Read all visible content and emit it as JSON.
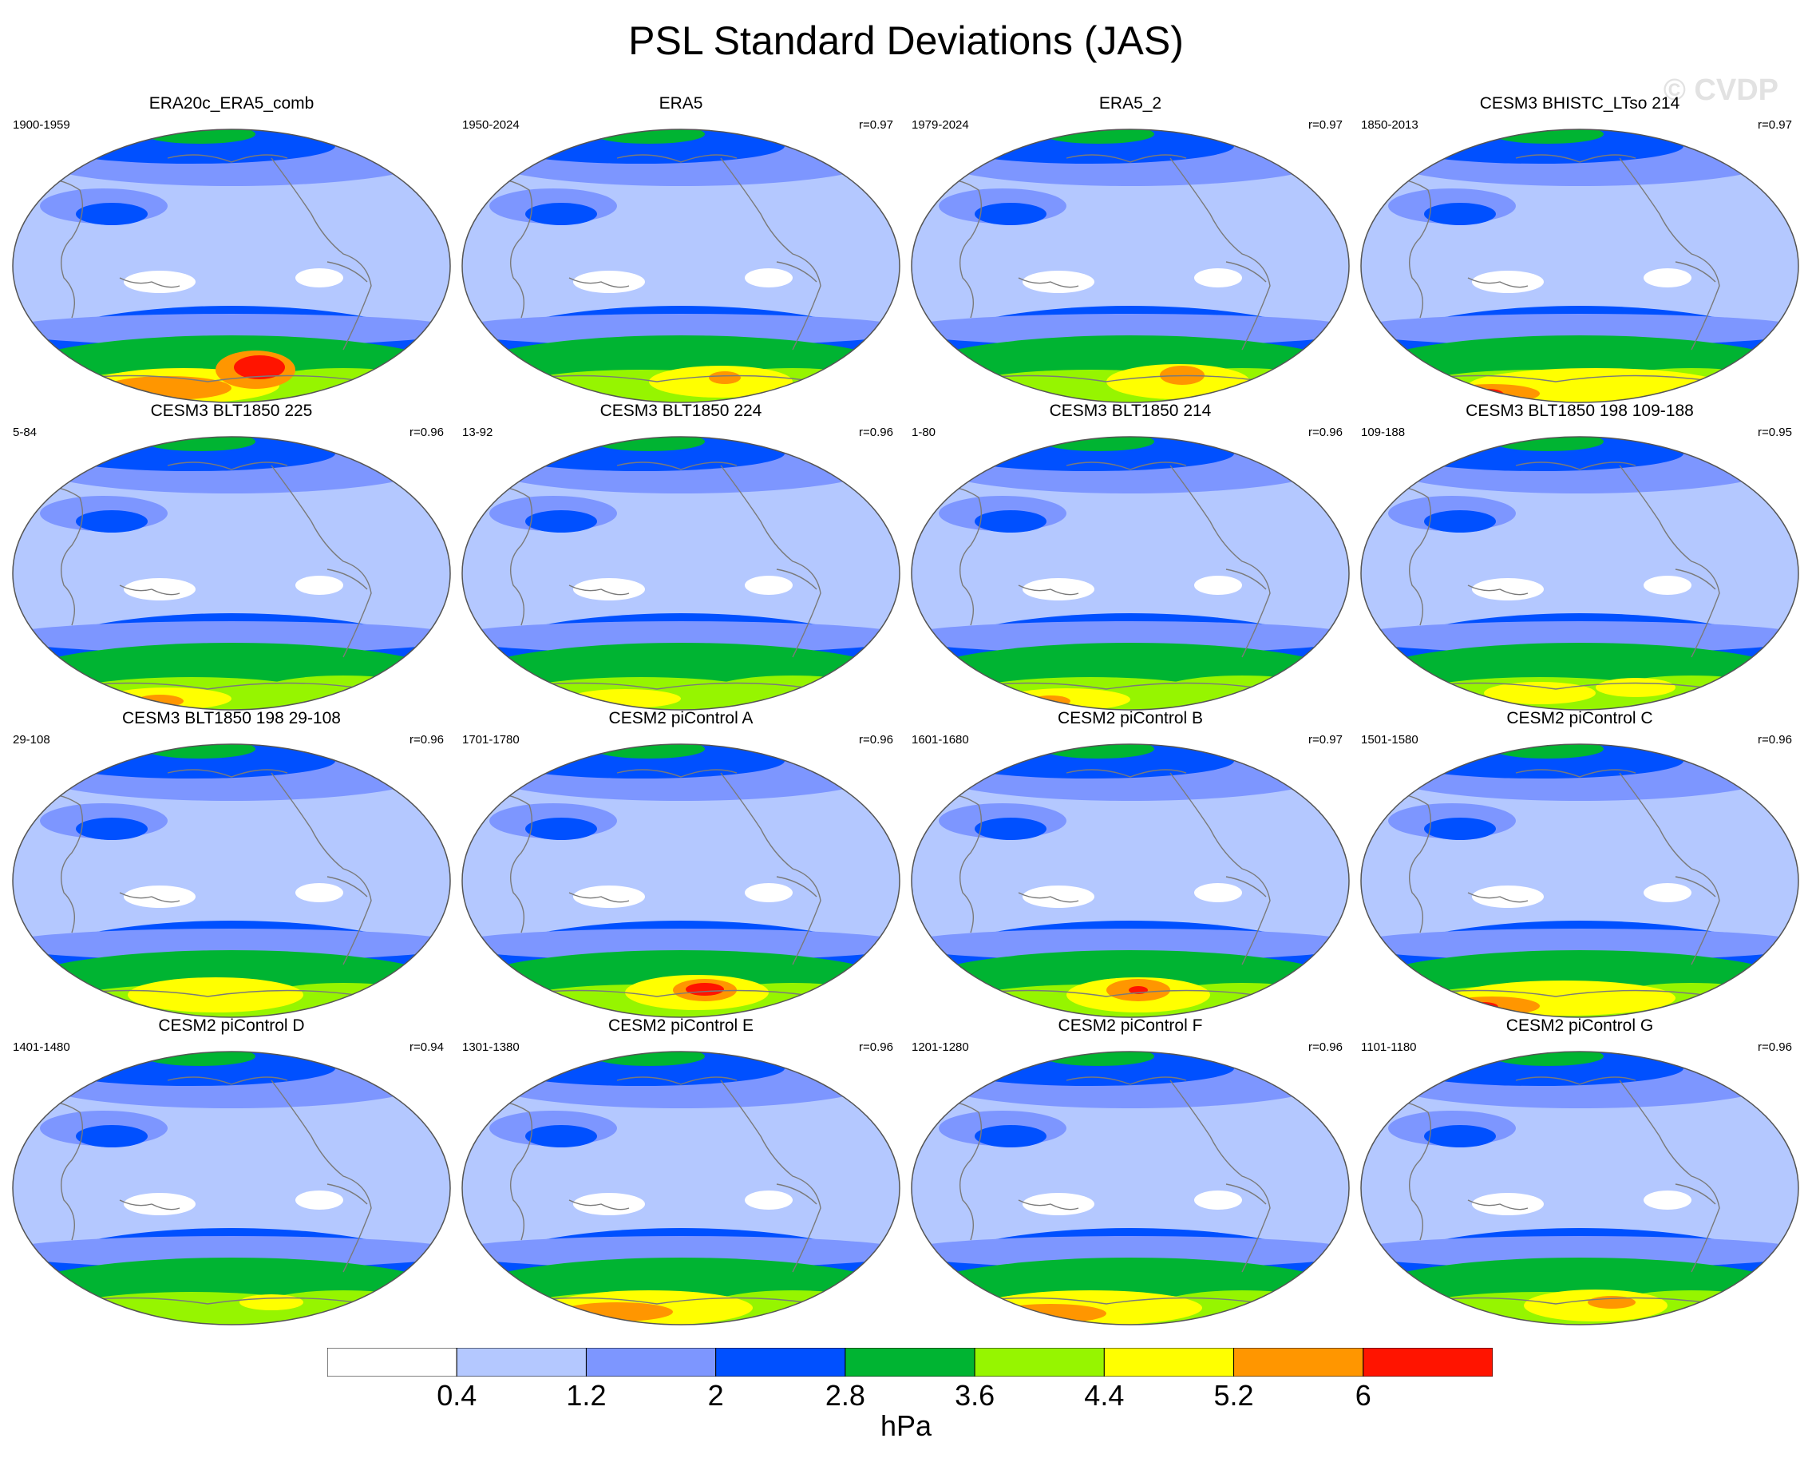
{
  "title": "PSL Standard Deviations (JAS)",
  "watermark": "© CVDP",
  "panels": [
    {
      "title": "ERA20c_ERA5_comb",
      "period": "1900-1959",
      "corr": ""
    },
    {
      "title": "ERA5",
      "period": "1950-2024",
      "corr": "r=0.97"
    },
    {
      "title": "ERA5_2",
      "period": "1979-2024",
      "corr": "r=0.97"
    },
    {
      "title": "CESM3 BHISTC_LTso 214",
      "period": "1850-2013",
      "corr": "r=0.97"
    },
    {
      "title": "CESM3 BLT1850 225",
      "period": "5-84",
      "corr": "r=0.96"
    },
    {
      "title": "CESM3 BLT1850 224",
      "period": "13-92",
      "corr": "r=0.96"
    },
    {
      "title": "CESM3 BLT1850 214",
      "period": "1-80",
      "corr": "r=0.96"
    },
    {
      "title": "CESM3 BLT1850 198 109-188",
      "period": "109-188",
      "corr": "r=0.95"
    },
    {
      "title": "CESM3 BLT1850 198 29-108",
      "period": "29-108",
      "corr": "r=0.96"
    },
    {
      "title": "CESM2 piControl A",
      "period": "1701-1780",
      "corr": "r=0.96"
    },
    {
      "title": "CESM2 piControl B",
      "period": "1601-1680",
      "corr": "r=0.97"
    },
    {
      "title": "CESM2 piControl C",
      "period": "1501-1580",
      "corr": "r=0.96"
    },
    {
      "title": "CESM2 piControl D",
      "period": "1401-1480",
      "corr": "r=0.94"
    },
    {
      "title": "CESM2 piControl E",
      "period": "1301-1380",
      "corr": "r=0.96"
    },
    {
      "title": "CESM2 piControl F",
      "period": "1201-1280",
      "corr": "r=0.96"
    },
    {
      "title": "CESM2 piControl G",
      "period": "1101-1180",
      "corr": "r=0.96"
    }
  ],
  "colorbar": {
    "colors": [
      "#ffffff",
      "#b4c8ff",
      "#7d96ff",
      "#0050ff",
      "#00b432",
      "#96f500",
      "#ffff00",
      "#ff9600",
      "#ff1400"
    ],
    "labels": [
      "0.4",
      "1.2",
      "2",
      "2.8",
      "3.6",
      "4.4",
      "5.2",
      "6"
    ],
    "units": "hPa"
  },
  "map_colors": {
    "background": "#b4c8ff",
    "coast": "#7a7a7a",
    "outline": "#555555"
  }
}
